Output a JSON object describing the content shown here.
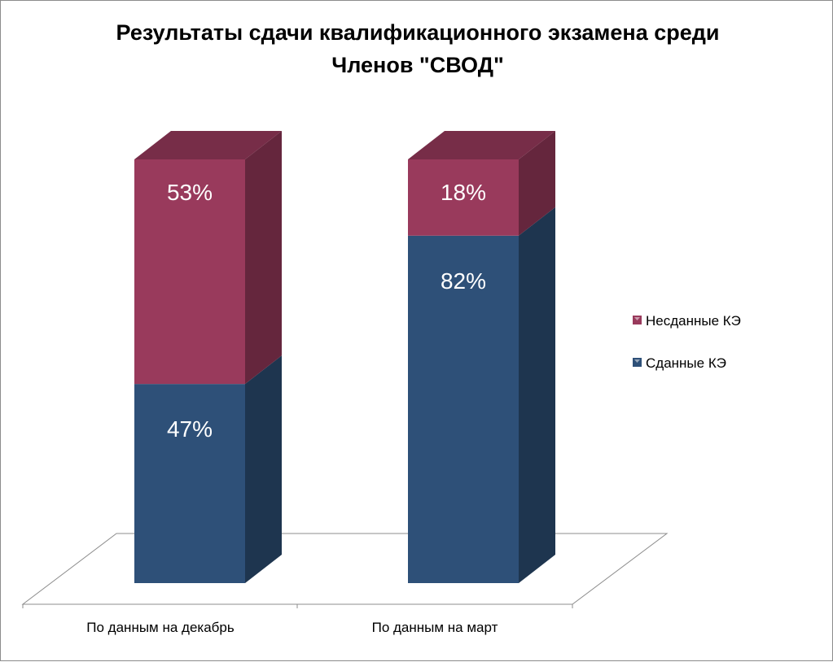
{
  "chart_data": {
    "type": "bar",
    "stacked": true,
    "three_d": true,
    "percent_stacked": true,
    "title": "Результаты сдачи квалификационного экзамена среди Членов \"СВОД\"",
    "title_lines": [
      "Результаты сдачи квалификационного экзамена среди",
      "Членов \"СВОД\""
    ],
    "categories": [
      "По данным на декабрь",
      "По данным на март"
    ],
    "series": [
      {
        "name": "Сданные КЭ",
        "values": [
          47,
          82
        ],
        "labels": [
          "47%",
          "82%"
        ],
        "color": "#2e5078"
      },
      {
        "name": "Несданные КЭ",
        "values": [
          53,
          18
        ],
        "labels": [
          "53%",
          "18%"
        ],
        "color": "#993a5c"
      }
    ],
    "ylim": [
      0,
      100
    ],
    "grid": false,
    "legend": {
      "position": "right",
      "order": [
        "Несданные КЭ",
        "Сданные КЭ"
      ]
    }
  }
}
